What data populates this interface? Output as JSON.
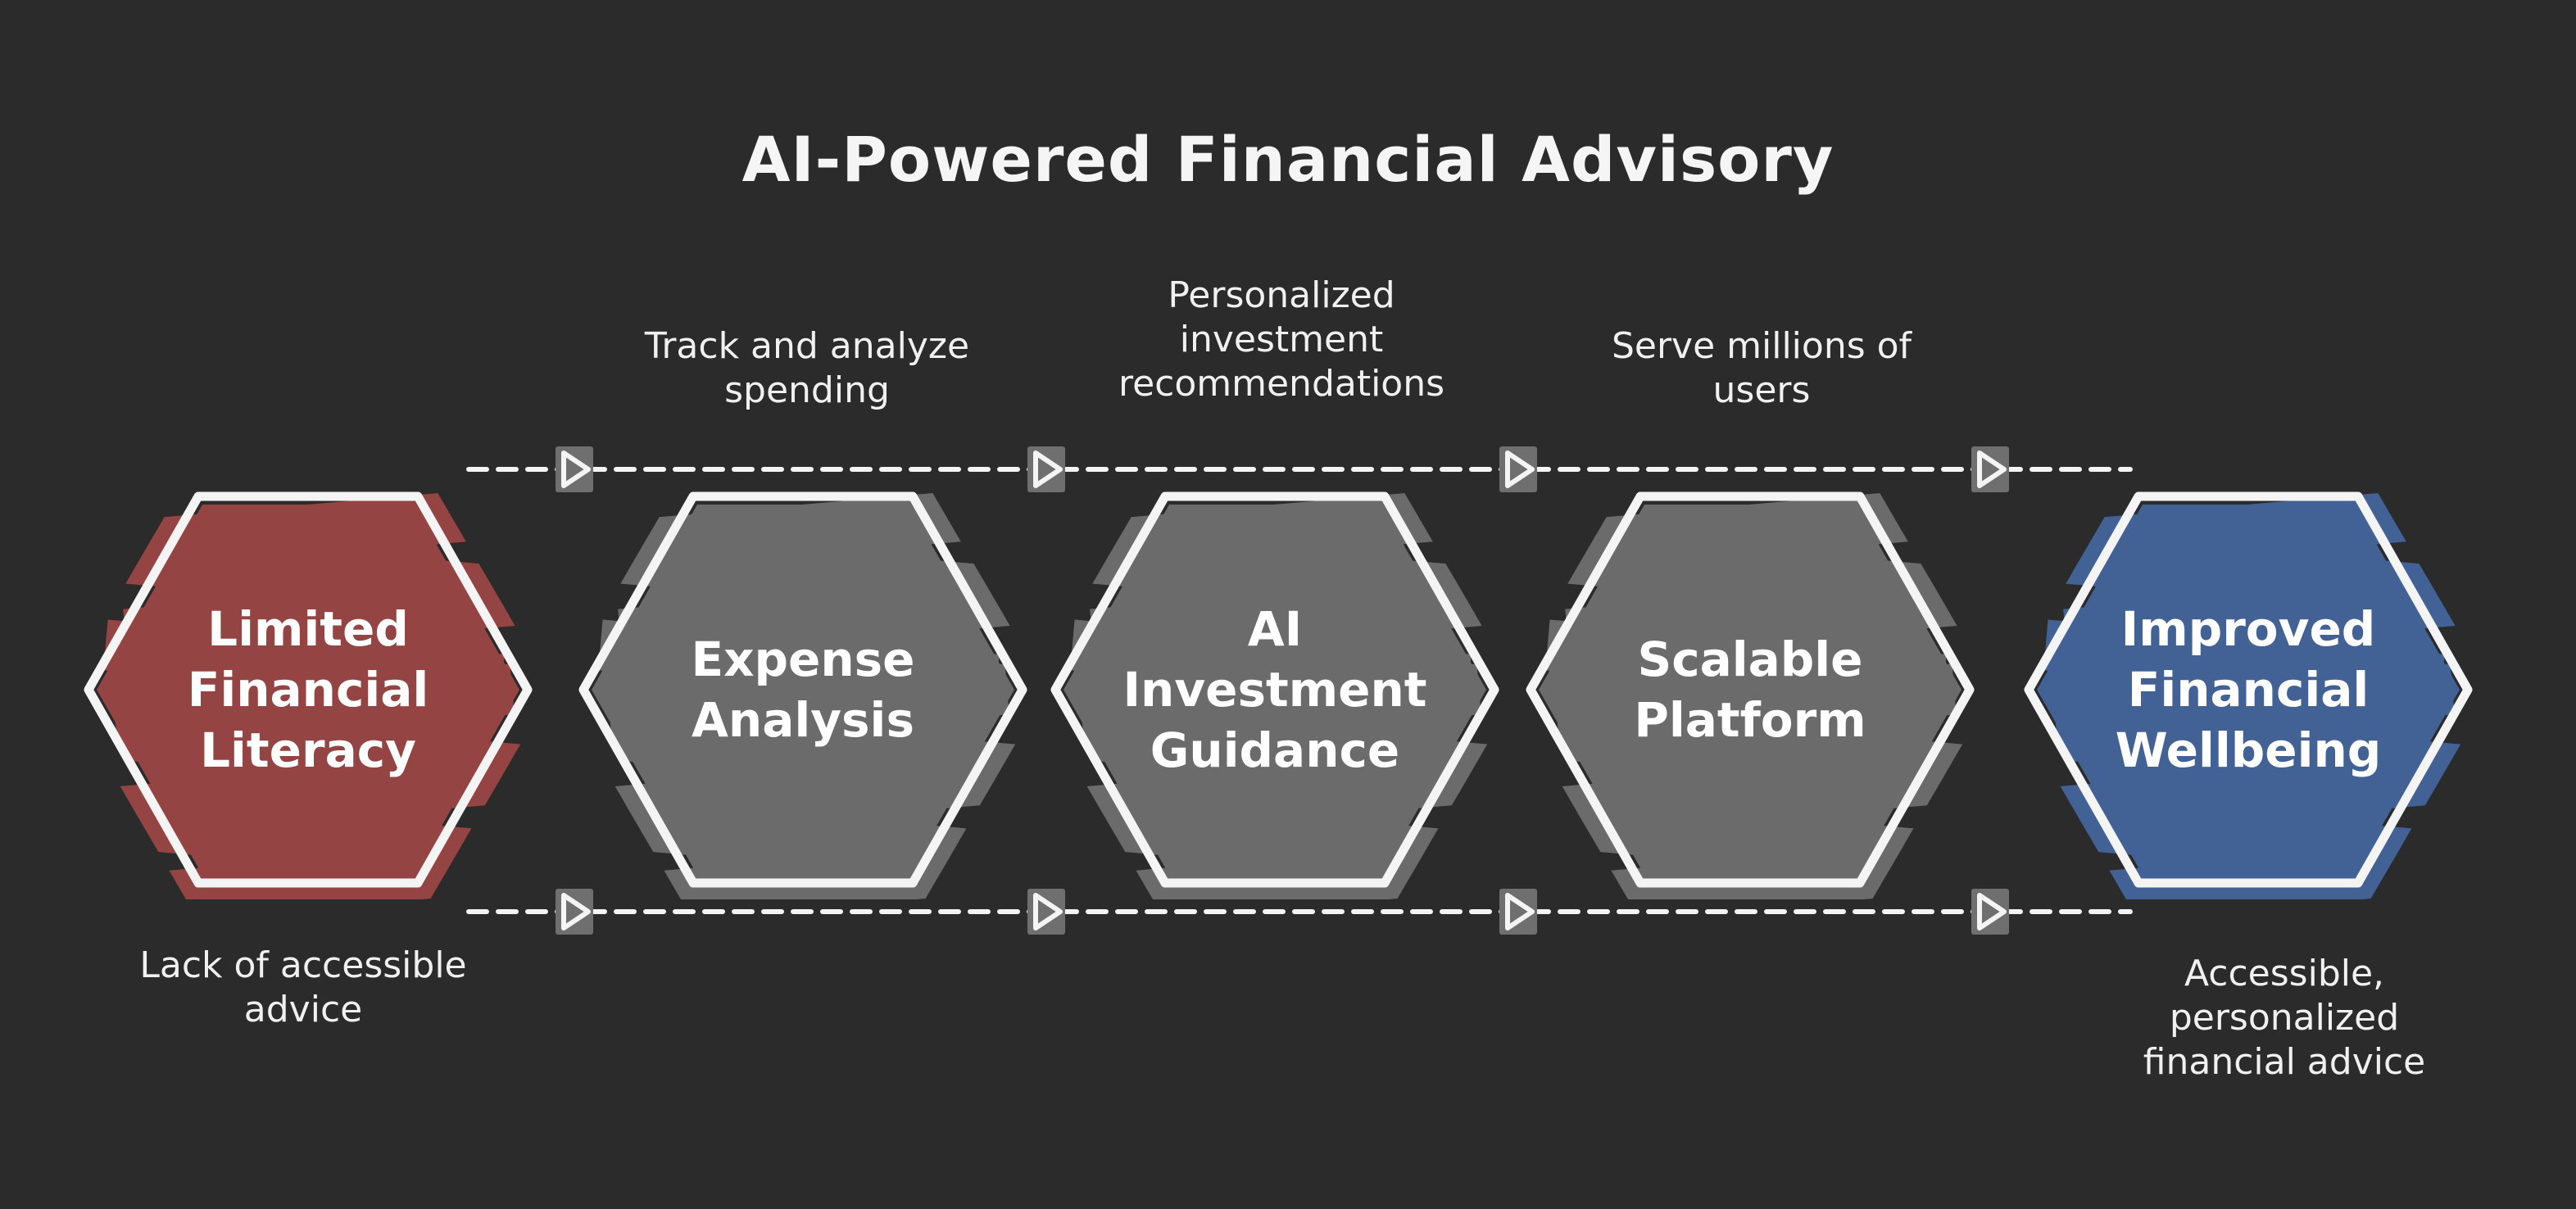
{
  "title": "AI-Powered Financial Advisory",
  "colors": {
    "background": "#2b2b2b",
    "outline": "#f4f4f4",
    "start": "#944443",
    "middle": "#6b6b6b",
    "end": "#426296",
    "arrow_box": "#6f6f6f"
  },
  "steps": [
    {
      "lines": [
        "Limited",
        "Financial",
        "Literacy"
      ],
      "kind": "start"
    },
    {
      "lines": [
        "Expense",
        "Analysis"
      ],
      "kind": "middle"
    },
    {
      "lines": [
        "AI",
        "Investment",
        "Guidance"
      ],
      "kind": "middle"
    },
    {
      "lines": [
        "Scalable",
        "Platform"
      ],
      "kind": "middle"
    },
    {
      "lines": [
        "Improved",
        "Financial",
        "Wellbeing"
      ],
      "kind": "end"
    }
  ],
  "top_captions": [
    {
      "lines": [
        "Track and analyze",
        "spending"
      ]
    },
    {
      "lines": [
        "Personalized",
        "investment",
        "recommendations"
      ]
    },
    {
      "lines": [
        "Serve millions of",
        "users"
      ]
    }
  ],
  "bottom_captions": [
    {
      "lines": [
        "Lack of accessible",
        "advice"
      ]
    },
    {
      "lines": [
        "Accessible,",
        "personalized",
        "financial advice"
      ]
    }
  ],
  "connector_icon": "play-arrow-icon"
}
